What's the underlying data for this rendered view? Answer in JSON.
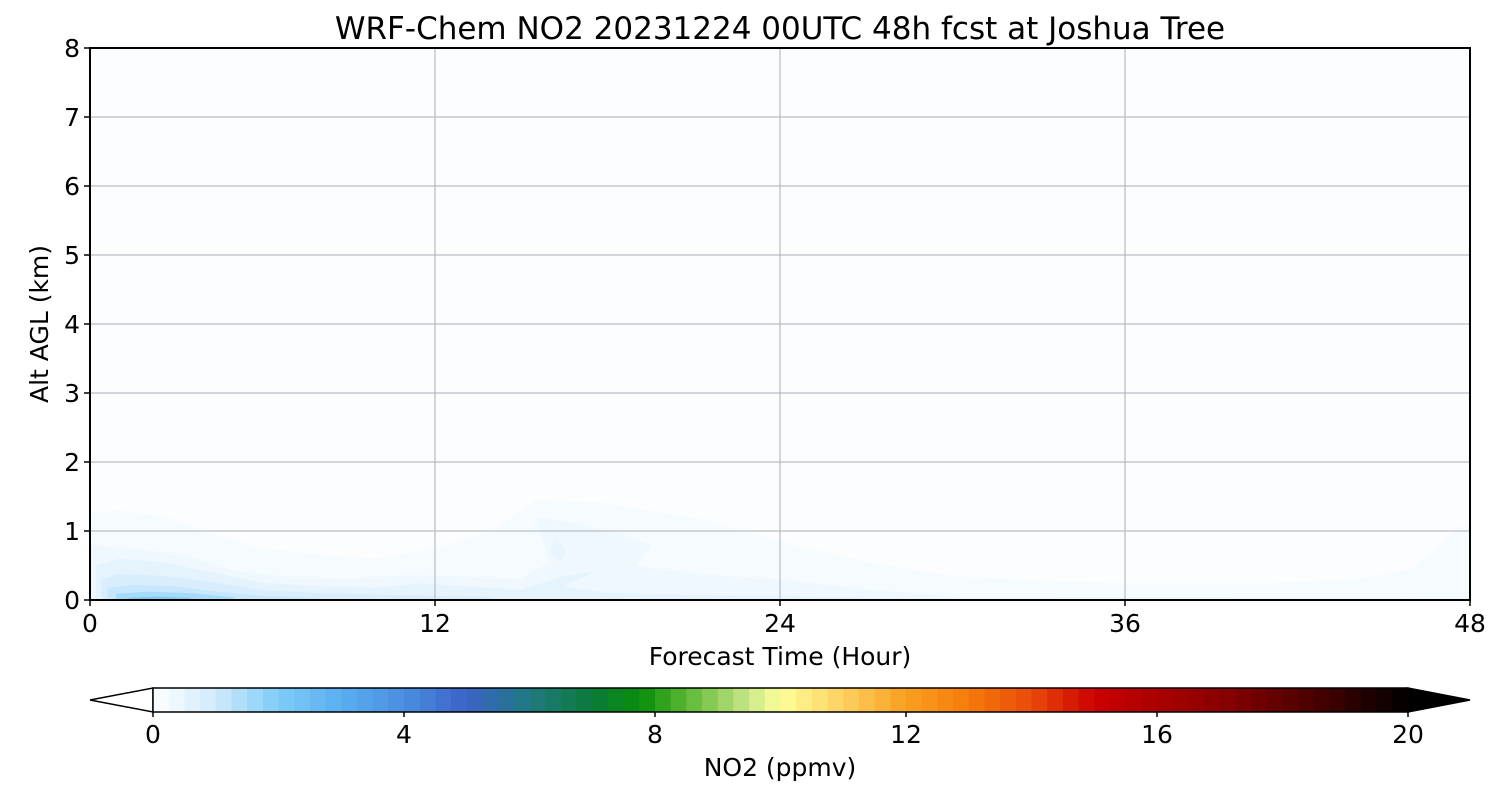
{
  "chart_data": {
    "type": "heatmap",
    "title": "WRF-Chem NO2  20231224 00UTC 48h fcst at Joshua Tree",
    "xlabel": "Forecast Time (Hour)",
    "ylabel": "Alt AGL (km)",
    "xlim": [
      0,
      48
    ],
    "ylim": [
      0,
      8
    ],
    "x_ticks": [
      "0",
      "12",
      "24",
      "36",
      "48"
    ],
    "y_ticks": [
      "0",
      "1",
      "2",
      "3",
      "4",
      "5",
      "6",
      "7",
      "8"
    ],
    "grid": true,
    "colorbar": {
      "label": "NO2  (ppmv)",
      "range": [
        0,
        20
      ],
      "ticks": [
        "0",
        "4",
        "8",
        "12",
        "16",
        "20"
      ],
      "extend": "both",
      "stops": [
        {
          "v": 0,
          "c": "#ffffff"
        },
        {
          "v": 1,
          "c": "#cfeafc"
        },
        {
          "v": 2,
          "c": "#7fccf7"
        },
        {
          "v": 3,
          "c": "#5aaef0"
        },
        {
          "v": 4,
          "c": "#4b8ee0"
        },
        {
          "v": 5,
          "c": "#3a63c8"
        },
        {
          "v": 6,
          "c": "#1f7a80"
        },
        {
          "v": 7,
          "c": "#0b7a3a"
        },
        {
          "v": 7.8,
          "c": "#0a8f0a"
        },
        {
          "v": 8.5,
          "c": "#5cb834"
        },
        {
          "v": 9.5,
          "c": "#c8e888"
        },
        {
          "v": 10,
          "c": "#ffff9a"
        },
        {
          "v": 11,
          "c": "#fcd060"
        },
        {
          "v": 12,
          "c": "#f9a020"
        },
        {
          "v": 13,
          "c": "#f57a0a"
        },
        {
          "v": 14,
          "c": "#e84a0a"
        },
        {
          "v": 15,
          "c": "#cc0000"
        },
        {
          "v": 17,
          "c": "#8a0000"
        },
        {
          "v": 18.5,
          "c": "#4a0000"
        },
        {
          "v": 20,
          "c": "#000000"
        }
      ]
    },
    "background_value": 0.08,
    "contours": [
      {
        "value": 0.2,
        "points": [
          [
            0,
            1.25
          ],
          [
            1,
            1.3
          ],
          [
            2.5,
            1.22
          ],
          [
            4,
            1.0
          ],
          [
            6,
            0.75
          ],
          [
            8,
            0.65
          ],
          [
            10,
            0.6
          ],
          [
            12,
            0.75
          ],
          [
            14,
            1.0
          ],
          [
            15.5,
            1.45
          ],
          [
            18,
            1.4
          ],
          [
            21.5,
            1.15
          ],
          [
            24,
            0.85
          ],
          [
            27,
            0.55
          ],
          [
            30,
            0.35
          ],
          [
            33,
            0.28
          ],
          [
            36,
            0.24
          ],
          [
            40,
            0.22
          ],
          [
            44,
            0.3
          ],
          [
            46,
            0.45
          ],
          [
            47,
            0.8
          ],
          [
            47.5,
            1.05
          ],
          [
            48,
            1.08
          ],
          [
            48,
            0
          ],
          [
            0,
            0
          ]
        ]
      },
      {
        "value": 0.35,
        "points": [
          [
            0,
            0.8
          ],
          [
            1,
            0.75
          ],
          [
            2.5,
            0.7
          ],
          [
            3.5,
            0.62
          ],
          [
            5,
            0.42
          ],
          [
            7,
            0.33
          ],
          [
            9,
            0.3
          ],
          [
            11,
            0.36
          ],
          [
            12.5,
            0.35
          ],
          [
            15,
            0.3
          ],
          [
            16,
            0.55
          ],
          [
            15.5,
            1.2
          ],
          [
            17,
            1.1
          ],
          [
            18.5,
            0.95
          ],
          [
            19.5,
            0.8
          ],
          [
            19,
            0.5
          ],
          [
            21,
            0.38
          ],
          [
            24,
            0.3
          ],
          [
            27,
            0.15
          ],
          [
            30,
            0.05
          ],
          [
            48,
            0.03
          ],
          [
            48,
            0
          ],
          [
            0,
            0
          ]
        ]
      },
      {
        "value": 0.55,
        "points": [
          [
            0.2,
            0.5
          ],
          [
            1,
            0.6
          ],
          [
            2.5,
            0.55
          ],
          [
            4,
            0.42
          ],
          [
            6,
            0.25
          ],
          [
            8,
            0.2
          ],
          [
            10,
            0.18
          ],
          [
            11.5,
            0.24
          ],
          [
            13,
            0.2
          ],
          [
            15,
            0.15
          ],
          [
            16.5,
            0.35
          ],
          [
            17.5,
            0.4
          ],
          [
            16.5,
            0.2
          ],
          [
            18,
            0.1
          ],
          [
            24,
            0.05
          ],
          [
            30,
            0.02
          ],
          [
            30,
            0
          ],
          [
            0.2,
            0
          ]
        ]
      },
      {
        "value": 0.8,
        "points": [
          [
            0.4,
            0.3
          ],
          [
            1,
            0.38
          ],
          [
            2.5,
            0.35
          ],
          [
            4,
            0.28
          ],
          [
            6,
            0.14
          ],
          [
            8,
            0.1
          ],
          [
            10,
            0.08
          ],
          [
            12,
            0.06
          ],
          [
            14,
            0.04
          ],
          [
            14,
            0
          ],
          [
            0.4,
            0
          ]
        ]
      },
      {
        "value": 1.1,
        "points": [
          [
            0.6,
            0.18
          ],
          [
            1.5,
            0.22
          ],
          [
            3,
            0.2
          ],
          [
            4.5,
            0.12
          ],
          [
            6,
            0.06
          ],
          [
            8,
            0.03
          ],
          [
            8,
            0
          ],
          [
            0.6,
            0
          ]
        ]
      },
      {
        "value": 1.5,
        "points": [
          [
            0.9,
            0.09
          ],
          [
            2,
            0.12
          ],
          [
            3.5,
            0.1
          ],
          [
            5,
            0.04
          ],
          [
            5,
            0
          ],
          [
            0.9,
            0
          ]
        ]
      },
      {
        "value": 2.0,
        "points": [
          [
            1.3,
            0.03
          ],
          [
            2.3,
            0.05
          ],
          [
            3.5,
            0.03
          ],
          [
            3.5,
            0
          ],
          [
            1.3,
            0
          ]
        ]
      },
      {
        "value": 0.5,
        "points": [
          [
            16.2,
            0.9
          ],
          [
            16.6,
            0.7
          ],
          [
            16.3,
            0.55
          ],
          [
            16.0,
            0.7
          ]
        ]
      }
    ]
  }
}
